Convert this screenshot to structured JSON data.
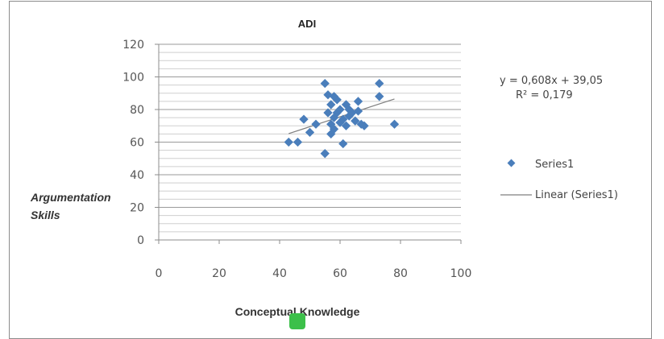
{
  "chart_data": {
    "type": "scatter",
    "title": "ADI",
    "xlabel": "Conceptual Knowledge",
    "ylabel_lines": [
      "Argumentation",
      "Skills"
    ],
    "xlim": [
      0,
      100
    ],
    "ylim": [
      0,
      120
    ],
    "xticks": [
      0,
      20,
      40,
      60,
      80,
      100
    ],
    "yticks": [
      0,
      20,
      40,
      60,
      80,
      100,
      120
    ],
    "xtick_labels": [
      "0",
      "20",
      "40",
      "60",
      "80",
      "100"
    ],
    "ytick_labels": [
      "0",
      "20",
      "40",
      "60",
      "80",
      "100",
      "120"
    ],
    "grid": true,
    "legend_position": "right",
    "series": [
      {
        "name": "Series1",
        "color": "#4a7ebb",
        "marker": "diamond",
        "points": [
          [
            43,
            60
          ],
          [
            46,
            60
          ],
          [
            48,
            74
          ],
          [
            50,
            66
          ],
          [
            52,
            71
          ],
          [
            55,
            53
          ],
          [
            55,
            96
          ],
          [
            56,
            89
          ],
          [
            56,
            78
          ],
          [
            57,
            65
          ],
          [
            57,
            71
          ],
          [
            57,
            83
          ],
          [
            58,
            68
          ],
          [
            58,
            88
          ],
          [
            58,
            75
          ],
          [
            59,
            78
          ],
          [
            59,
            86
          ],
          [
            60,
            72
          ],
          [
            60,
            80
          ],
          [
            61,
            59
          ],
          [
            61,
            74
          ],
          [
            62,
            83
          ],
          [
            62,
            70
          ],
          [
            63,
            76
          ],
          [
            63,
            80
          ],
          [
            64,
            78
          ],
          [
            65,
            73
          ],
          [
            66,
            85
          ],
          [
            66,
            79
          ],
          [
            67,
            71
          ],
          [
            68,
            70
          ],
          [
            73,
            96
          ],
          [
            73,
            88
          ],
          [
            78,
            71
          ]
        ]
      }
    ],
    "trendline": {
      "name": "Linear (Series1)",
      "slope": 0.608,
      "intercept": 39.05,
      "x_range": [
        43,
        78
      ],
      "color": "#7f7f7f"
    },
    "equation_text": "y = 0,608x + 39,05",
    "r2_text": "R² = 0,179"
  }
}
